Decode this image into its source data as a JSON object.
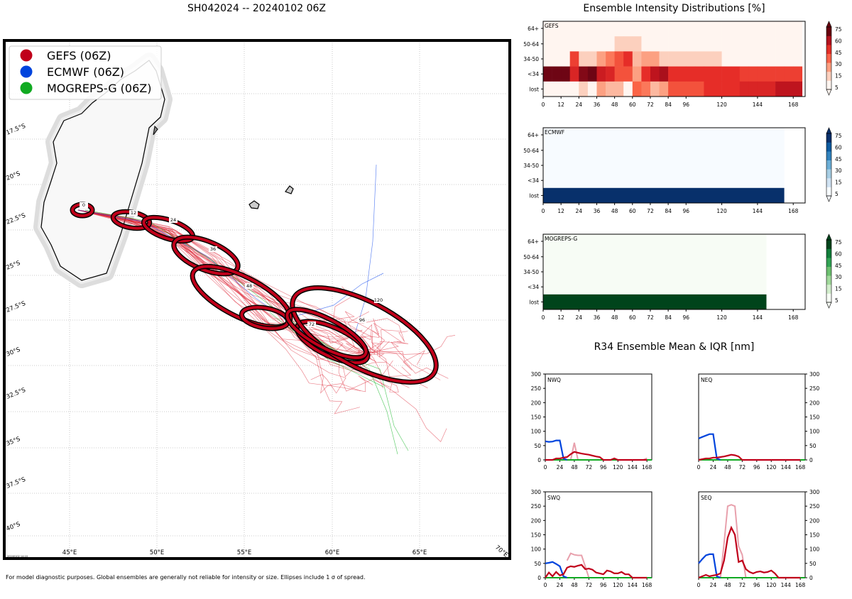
{
  "main_title": "SH042024 -- 20240102 06Z",
  "footer_note": "For model diagnostic purposes. Global ensembles are generally not reliable for intensity or size. Ellipses include 1 σ of spread.",
  "timestamp": "20240102 14:10",
  "colors": {
    "gefs": "#c0001a",
    "ecmwf": "#0044dd",
    "mogreps": "#11aa22"
  },
  "map": {
    "legend": [
      {
        "label": "GEFS (06Z)",
        "color": "#c0001a"
      },
      {
        "label": "ECMWF (06Z)",
        "color": "#0044dd"
      },
      {
        "label": "MOGREPS-G (06Z)",
        "color": "#11aa22"
      }
    ],
    "lon_labels": [
      "45°E",
      "50°E",
      "55°E",
      "60°E",
      "65°E",
      "70°E"
    ],
    "lat_labels": [
      "17.5°S",
      "20°S",
      "22.5°S",
      "25°S",
      "27.5°S",
      "30°S",
      "32.5°S",
      "35°S",
      "37.5°S",
      "40°S"
    ],
    "ellipse_labels": [
      "0",
      "12",
      "24",
      "36",
      "48",
      "72",
      "96",
      "120"
    ]
  },
  "intensity": {
    "title": "Ensemble Intensity Distributions [%]",
    "y_labels": [
      "64+",
      "50-64",
      "34-50",
      "<34",
      "lost"
    ],
    "x_labels": [
      "0",
      "12",
      "24",
      "36",
      "48",
      "60",
      "72",
      "84",
      "96",
      "120",
      "144",
      "168"
    ],
    "colorbar_ticks": [
      "75",
      "60",
      "45",
      "30",
      "15",
      "5"
    ],
    "panels": [
      {
        "name": "GEFS",
        "x_end": 168
      },
      {
        "name": "ECMWF",
        "x_end": 162
      },
      {
        "name": "MOGREPS-G",
        "x_end": 150
      }
    ]
  },
  "chart_data": [
    {
      "type": "heatmap",
      "title": "GEFS",
      "x": [
        0,
        6,
        12,
        18,
        24,
        30,
        36,
        42,
        48,
        54,
        60,
        66,
        72,
        78,
        84,
        90,
        96,
        102,
        108,
        114,
        120,
        126,
        132,
        138,
        144,
        150,
        156,
        162,
        168
      ],
      "y_categories": [
        "64+",
        "50-64",
        "34-50",
        "<34",
        "lost"
      ],
      "values_pct": {
        "64+": [
          0,
          0,
          0,
          0,
          0,
          0,
          0,
          0,
          0,
          0,
          0,
          0,
          0,
          0,
          0,
          0,
          0,
          0,
          0,
          0,
          0,
          0,
          0,
          0,
          0,
          0,
          0,
          0,
          0
        ],
        "50-64": [
          0,
          0,
          0,
          0,
          0,
          0,
          0,
          0,
          10,
          10,
          10,
          0,
          0,
          0,
          0,
          0,
          0,
          0,
          0,
          0,
          0,
          0,
          0,
          0,
          0,
          0,
          0,
          0,
          0
        ],
        "34-50": [
          0,
          0,
          0,
          45,
          10,
          10,
          20,
          30,
          40,
          50,
          15,
          20,
          20,
          10,
          10,
          10,
          10,
          10,
          10,
          10,
          0,
          0,
          0,
          0,
          0,
          0,
          0,
          0,
          0
        ],
        "<34": [
          100,
          100,
          100,
          55,
          80,
          90,
          60,
          55,
          40,
          40,
          20,
          50,
          65,
          70,
          50,
          50,
          50,
          50,
          50,
          50,
          50,
          50,
          45,
          45,
          45,
          45,
          45,
          45,
          45
        ],
        "lost": [
          0,
          0,
          0,
          0,
          10,
          0,
          20,
          15,
          15,
          0,
          35,
          30,
          15,
          20,
          40,
          40,
          40,
          40,
          50,
          50,
          50,
          50,
          55,
          55,
          55,
          55,
          65,
          65,
          65
        ]
      }
    },
    {
      "type": "heatmap",
      "title": "ECMWF",
      "x": [
        0,
        162
      ],
      "y_categories": [
        "64+",
        "50-64",
        "34-50",
        "<34",
        "lost"
      ],
      "values_pct": {
        "64+": 0,
        "50-64": 0,
        "34-50": 0,
        "<34": 0,
        "lost": 100
      }
    },
    {
      "type": "heatmap",
      "title": "MOGREPS-G",
      "x": [
        0,
        150
      ],
      "y_categories": [
        "64+",
        "50-64",
        "34-50",
        "<34",
        "lost"
      ],
      "values_pct": {
        "64+": 0,
        "50-64": 0,
        "34-50": 0,
        "<34": 0,
        "lost": 100
      }
    },
    {
      "type": "line",
      "title": "R34 Ensemble Mean & IQR [nm]",
      "x_ticks": [
        0,
        24,
        48,
        72,
        96,
        120,
        144,
        168
      ],
      "y_ticks": [
        0,
        50,
        100,
        150,
        200,
        250,
        300
      ],
      "ylim": [
        0,
        300
      ],
      "quadrants": [
        {
          "name": "NWQ",
          "ecmwf": [
            [
              0,
              65
            ],
            [
              6,
              63
            ],
            [
              12,
              64
            ],
            [
              18,
              68
            ],
            [
              24,
              68
            ],
            [
              30,
              5
            ],
            [
              36,
              0
            ]
          ],
          "gefs_mean": [
            [
              0,
              0
            ],
            [
              12,
              0
            ],
            [
              18,
              5
            ],
            [
              24,
              5
            ],
            [
              30,
              8
            ],
            [
              36,
              10
            ],
            [
              42,
              20
            ],
            [
              48,
              28
            ],
            [
              54,
              25
            ],
            [
              60,
              22
            ],
            [
              66,
              20
            ],
            [
              72,
              18
            ],
            [
              78,
              15
            ],
            [
              84,
              12
            ],
            [
              90,
              10
            ],
            [
              96,
              0
            ],
            [
              108,
              0
            ],
            [
              114,
              5
            ],
            [
              120,
              0
            ],
            [
              168,
              0
            ]
          ],
          "gefs_iqr": [
            [
              42,
              0
            ],
            [
              48,
              60
            ],
            [
              51,
              30
            ],
            [
              54,
              0
            ],
            [
              108,
              0
            ],
            [
              114,
              6
            ],
            [
              120,
              0
            ],
            [
              162,
              0
            ],
            [
              168,
              6
            ]
          ]
        },
        {
          "name": "NEQ",
          "ecmwf": [
            [
              0,
              75
            ],
            [
              6,
              80
            ],
            [
              12,
              85
            ],
            [
              18,
              90
            ],
            [
              24,
              90
            ],
            [
              30,
              5
            ],
            [
              36,
              0
            ]
          ],
          "gefs_mean": [
            [
              0,
              0
            ],
            [
              12,
              5
            ],
            [
              18,
              5
            ],
            [
              24,
              8
            ],
            [
              30,
              8
            ],
            [
              36,
              10
            ],
            [
              42,
              12
            ],
            [
              48,
              15
            ],
            [
              54,
              18
            ],
            [
              60,
              16
            ],
            [
              66,
              12
            ],
            [
              72,
              0
            ],
            [
              168,
              0
            ]
          ],
          "gefs_iqr": []
        },
        {
          "name": "SWQ",
          "ecmwf": [
            [
              0,
              50
            ],
            [
              6,
              52
            ],
            [
              12,
              55
            ],
            [
              18,
              48
            ],
            [
              24,
              40
            ],
            [
              30,
              5
            ],
            [
              36,
              0
            ]
          ],
          "gefs_mean": [
            [
              0,
              0
            ],
            [
              6,
              18
            ],
            [
              12,
              5
            ],
            [
              18,
              20
            ],
            [
              24,
              8
            ],
            [
              30,
              12
            ],
            [
              36,
              35
            ],
            [
              42,
              40
            ],
            [
              48,
              38
            ],
            [
              54,
              42
            ],
            [
              60,
              45
            ],
            [
              66,
              30
            ],
            [
              72,
              32
            ],
            [
              78,
              28
            ],
            [
              84,
              18
            ],
            [
              90,
              15
            ],
            [
              96,
              12
            ],
            [
              102,
              25
            ],
            [
              108,
              22
            ],
            [
              114,
              15
            ],
            [
              120,
              15
            ],
            [
              126,
              20
            ],
            [
              132,
              12
            ],
            [
              138,
              12
            ],
            [
              144,
              0
            ],
            [
              168,
              0
            ]
          ],
          "gefs_iqr": [
            [
              36,
              60
            ],
            [
              42,
              85
            ],
            [
              48,
              80
            ],
            [
              54,
              78
            ],
            [
              60,
              78
            ],
            [
              66,
              40
            ],
            [
              72,
              0
            ]
          ]
        },
        {
          "name": "SEQ",
          "ecmwf": [
            [
              0,
              50
            ],
            [
              6,
              65
            ],
            [
              12,
              78
            ],
            [
              18,
              82
            ],
            [
              24,
              82
            ],
            [
              30,
              5
            ],
            [
              36,
              0
            ]
          ],
          "gefs_mean": [
            [
              0,
              0
            ],
            [
              12,
              10
            ],
            [
              18,
              5
            ],
            [
              24,
              8
            ],
            [
              30,
              10
            ],
            [
              36,
              15
            ],
            [
              42,
              60
            ],
            [
              48,
              140
            ],
            [
              54,
              175
            ],
            [
              60,
              150
            ],
            [
              66,
              55
            ],
            [
              72,
              60
            ],
            [
              78,
              30
            ],
            [
              84,
              20
            ],
            [
              90,
              15
            ],
            [
              96,
              20
            ],
            [
              102,
              22
            ],
            [
              108,
              18
            ],
            [
              114,
              20
            ],
            [
              120,
              25
            ],
            [
              126,
              15
            ],
            [
              132,
              0
            ],
            [
              168,
              0
            ]
          ],
          "gefs_iqr": [
            [
              36,
              0
            ],
            [
              42,
              120
            ],
            [
              48,
              250
            ],
            [
              54,
              255
            ],
            [
              60,
              250
            ],
            [
              66,
              110
            ],
            [
              72,
              80
            ],
            [
              78,
              0
            ]
          ]
        }
      ]
    }
  ]
}
